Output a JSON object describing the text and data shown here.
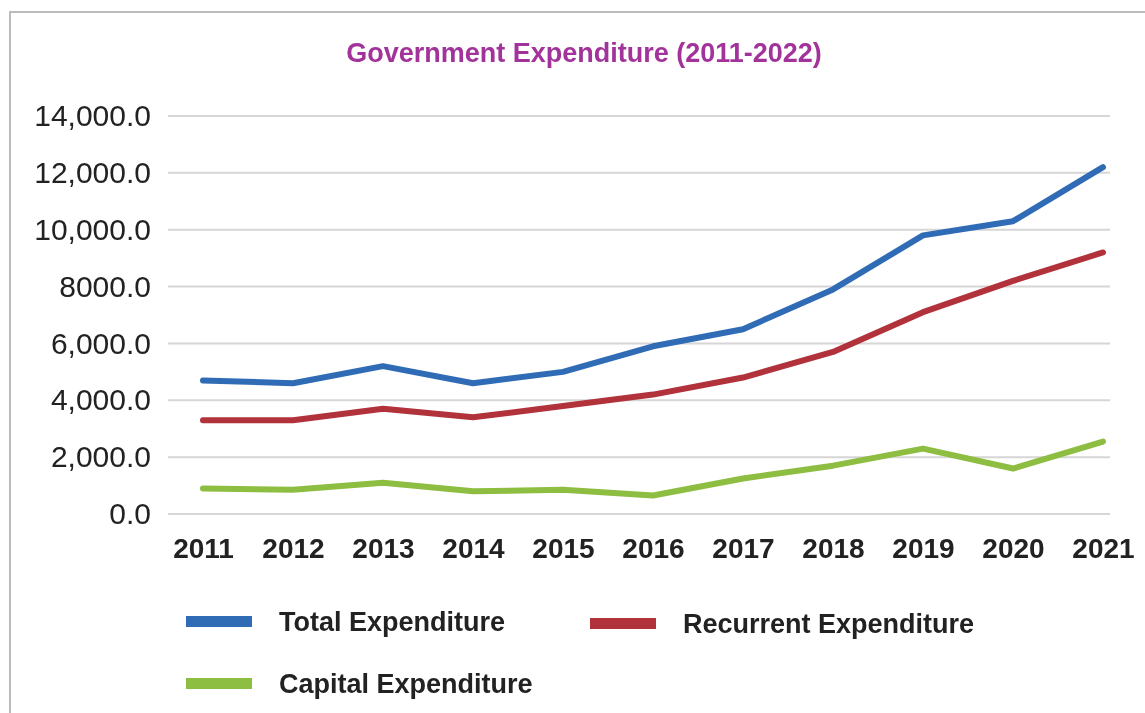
{
  "chart_data": {
    "type": "line",
    "title": "Government Expenditure (2011-2022)",
    "categories": [
      "2011",
      "2012",
      "2013",
      "2014",
      "2015",
      "2016",
      "2017",
      "2018",
      "2019",
      "2020",
      "2021"
    ],
    "series": [
      {
        "name": "Total Expenditure",
        "color": "#2f6cb5",
        "values": [
          4700,
          4600,
          5200,
          4600,
          5000,
          5900,
          6500,
          7900,
          9800,
          10300,
          12200
        ]
      },
      {
        "name": "Recurrent Expenditure",
        "color": "#b1323b",
        "values": [
          3300,
          3300,
          3700,
          3400,
          3800,
          4200,
          4800,
          5700,
          7100,
          8200,
          9200
        ]
      },
      {
        "name": "Capital Expenditure",
        "color": "#8dbd41",
        "values": [
          900,
          850,
          1100,
          800,
          850,
          650,
          1250,
          1700,
          2300,
          1600,
          2550
        ]
      }
    ],
    "ylim": [
      0,
      14000
    ],
    "yticks": [
      {
        "value": 0,
        "label": "0.0"
      },
      {
        "value": 2000,
        "label": "2,000.0"
      },
      {
        "value": 4000,
        "label": "4,000.0"
      },
      {
        "value": 6000,
        "label": "6,000.0"
      },
      {
        "value": 8000,
        "label": "8000.0"
      },
      {
        "value": 10000,
        "label": "10,000.0"
      },
      {
        "value": 12000,
        "label": "12,000.0"
      },
      {
        "value": 14000,
        "label": "14,000.0"
      }
    ],
    "grid": "y",
    "legend": "bottom",
    "marker": "none",
    "line_style": "solid"
  }
}
